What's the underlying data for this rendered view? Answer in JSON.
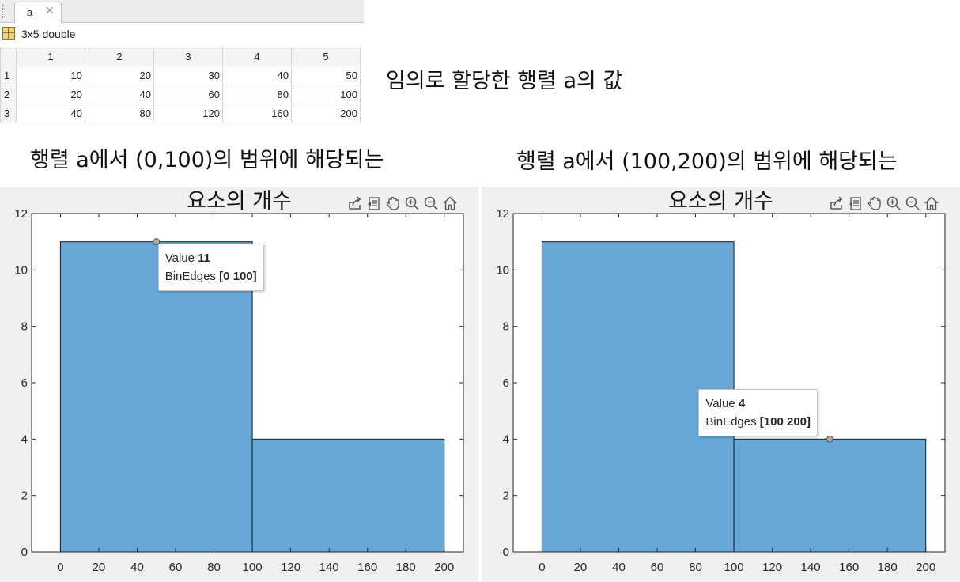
{
  "editor": {
    "tab_label": "a",
    "variable_description": "3x5 double",
    "column_headers": [
      "1",
      "2",
      "3",
      "4",
      "5"
    ],
    "rows": [
      {
        "row_label": "1",
        "values": [
          "10",
          "20",
          "30",
          "40",
          "50"
        ]
      },
      {
        "row_label": "2",
        "values": [
          "20",
          "40",
          "60",
          "80",
          "100"
        ]
      },
      {
        "row_label": "3",
        "values": [
          "40",
          "80",
          "120",
          "160",
          "200"
        ]
      }
    ]
  },
  "captions": {
    "matrix": "임의로 할당한 행렬 a의 값",
    "left_line1": "행렬 a에서 (0,100)의 범위에 해당되는",
    "right_line1": "행렬 a에서 (100,200)의 범위에 해당되는"
  },
  "toolbar_icons": [
    "export-icon",
    "brush-icon",
    "pan-icon",
    "zoom-in-icon",
    "zoom-out-icon",
    "home-icon"
  ],
  "colors": {
    "bar_fill": "#67a8d6",
    "bar_edge": "#1a1a1a",
    "figure_bg": "#f0f0f0"
  },
  "chart_data": [
    {
      "type": "bar",
      "title": "요소의 개수",
      "bin_edges": [
        0,
        100,
        200
      ],
      "values": [
        11,
        4
      ],
      "xlim": [
        -15,
        210
      ],
      "ylim": [
        0,
        12
      ],
      "xticks": [
        "0",
        "20",
        "40",
        "60",
        "80",
        "100",
        "120",
        "140",
        "160",
        "180",
        "200"
      ],
      "yticks": [
        "0",
        "2",
        "4",
        "6",
        "8",
        "10",
        "12"
      ],
      "datatip": {
        "value_label": "Value",
        "value": "11",
        "edges_label": "BinEdges",
        "edges": "[0 100]",
        "anchor_x": 50,
        "anchor_y": 11
      }
    },
    {
      "type": "bar",
      "title": "요소의 개수",
      "bin_edges": [
        0,
        100,
        200
      ],
      "values": [
        11,
        4
      ],
      "xlim": [
        -15,
        210
      ],
      "ylim": [
        0,
        12
      ],
      "xticks": [
        "0",
        "20",
        "40",
        "60",
        "80",
        "100",
        "120",
        "140",
        "160",
        "180",
        "200"
      ],
      "yticks": [
        "0",
        "2",
        "4",
        "6",
        "8",
        "10",
        "12"
      ],
      "datatip": {
        "value_label": "Value",
        "value": "4",
        "edges_label": "BinEdges",
        "edges": "[100 200]",
        "anchor_x": 150,
        "anchor_y": 4
      }
    }
  ]
}
